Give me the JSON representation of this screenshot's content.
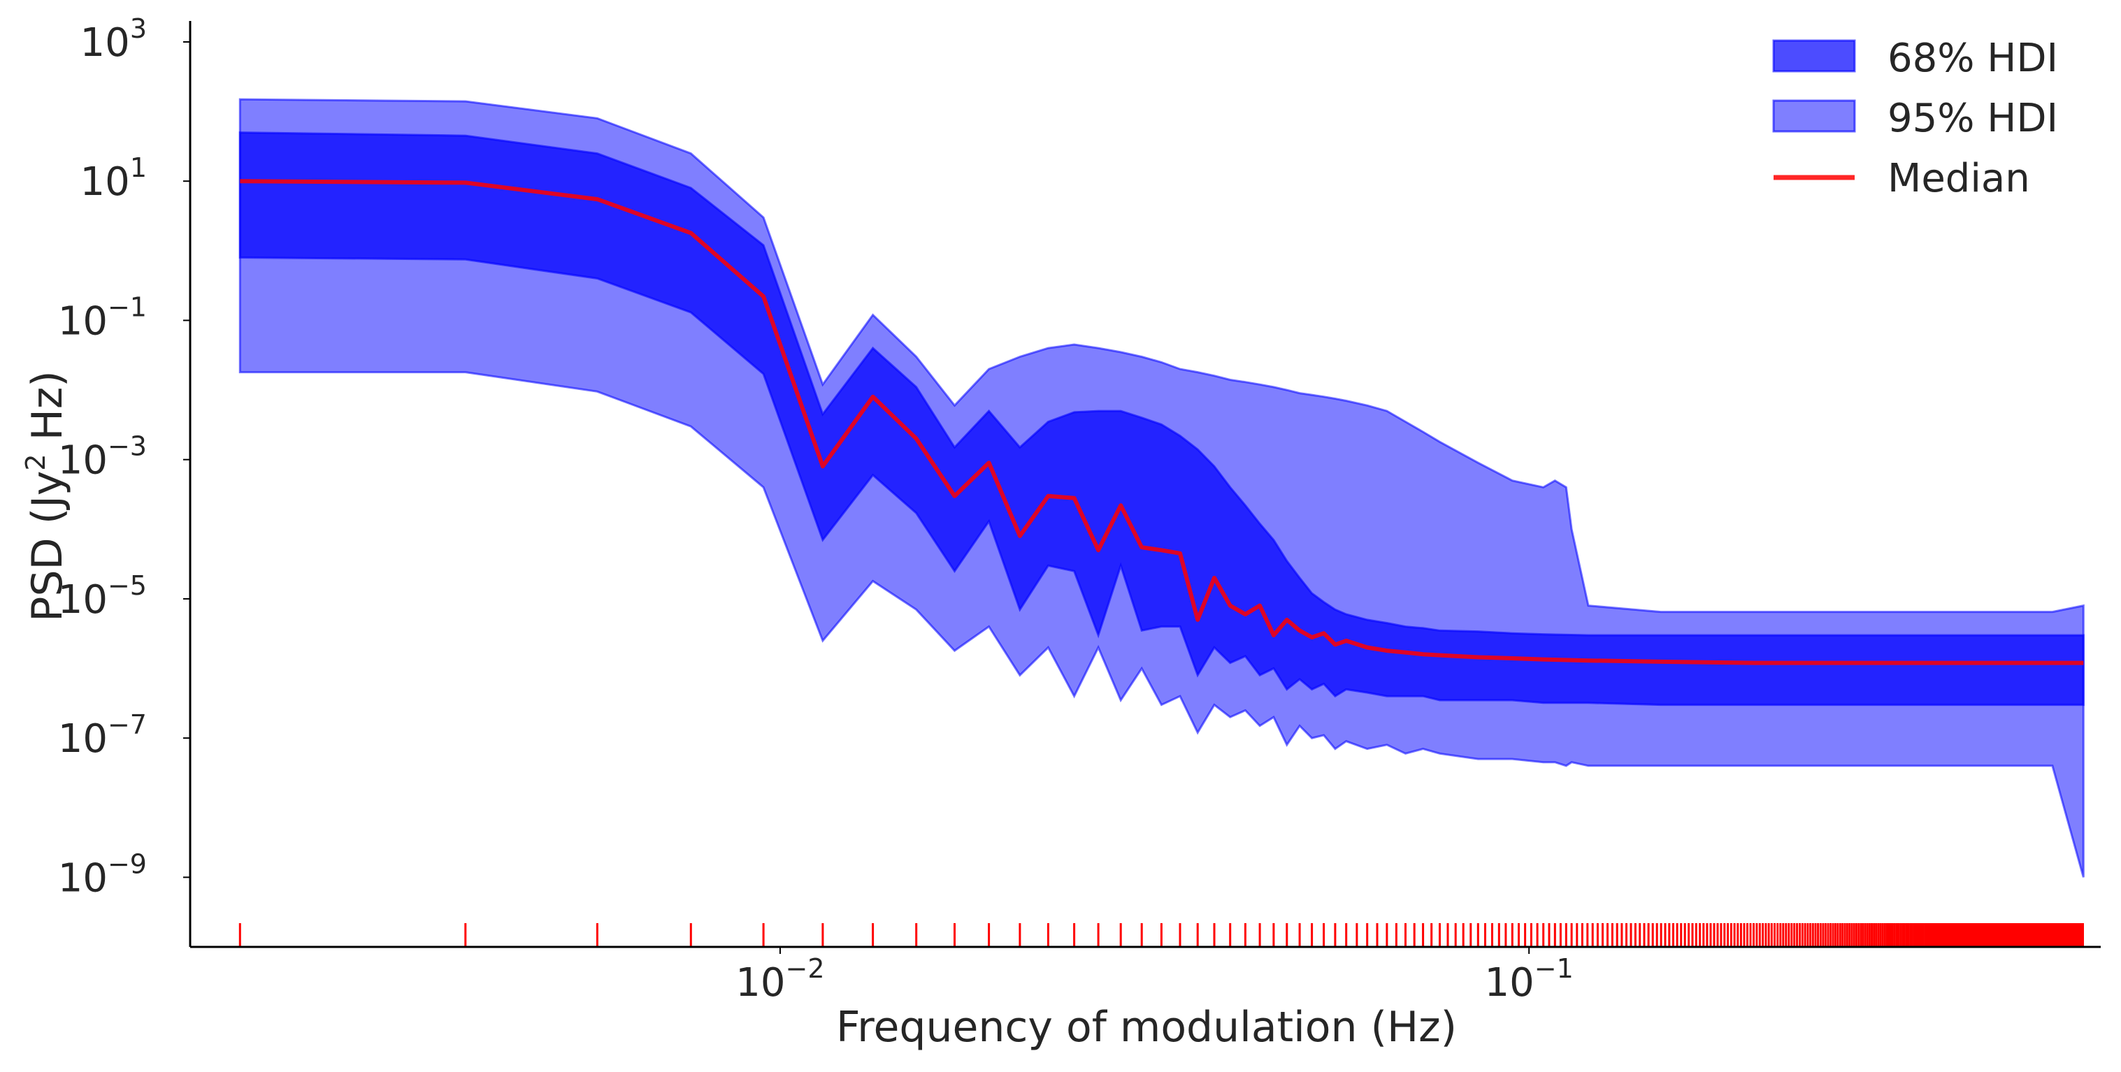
{
  "chart_data": {
    "type": "area",
    "title": "",
    "xlabel": "Frequency of modulation (Hz)",
    "ylabel_main": "PSD (Jy",
    "ylabel_sup": "2",
    "ylabel_tail": " Hz)",
    "xscale": "log",
    "yscale": "log",
    "xlim": [
      0.00163,
      0.58
    ],
    "ylim": [
      1e-10,
      2000.0
    ],
    "xticks": [
      {
        "value": 0.01,
        "base": "10",
        "exp": "−2"
      },
      {
        "value": 0.1,
        "base": "10",
        "exp": "−1"
      }
    ],
    "yticks": [
      {
        "value": 1000.0,
        "base": "10",
        "exp": "3"
      },
      {
        "value": 10.0,
        "base": "10",
        "exp": "1"
      },
      {
        "value": 0.1,
        "base": "10",
        "exp": "−1"
      },
      {
        "value": 0.001,
        "base": "10",
        "exp": "−3"
      },
      {
        "value": 1e-05,
        "base": "10",
        "exp": "−5"
      },
      {
        "value": 1e-07,
        "base": "10",
        "exp": "−7"
      },
      {
        "value": 1e-09,
        "base": "10",
        "exp": "−9"
      }
    ],
    "grid": false,
    "legend_position": "top-right",
    "legend": [
      {
        "label": "68% HDI",
        "kind": "patch",
        "color": "#0000ff",
        "opacity": 0.7
      },
      {
        "label": "95% HDI",
        "kind": "patch",
        "color": "#0000ff",
        "opacity": 0.5
      },
      {
        "label": "Median",
        "kind": "line",
        "color": "#ff0000"
      }
    ],
    "colors": {
      "band": "#0000ff",
      "median": "#ff0000",
      "rug": "#ff0000",
      "axis": "#000000"
    },
    "series": [
      {
        "name": "95% HDI",
        "x": [
          0.0019,
          0.0038,
          0.0057,
          0.0076,
          0.0095,
          0.0114,
          0.0133,
          0.0152,
          0.0171,
          0.019,
          0.0209,
          0.0228,
          0.0247,
          0.0266,
          0.0285,
          0.0304,
          0.0323,
          0.0342,
          0.0361,
          0.038,
          0.0399,
          0.0418,
          0.0437,
          0.0456,
          0.0475,
          0.0494,
          0.0513,
          0.0532,
          0.0551,
          0.057,
          0.0608,
          0.0646,
          0.0684,
          0.0722,
          0.076,
          0.0855,
          0.095,
          0.1045,
          0.1083,
          0.1121,
          0.114,
          0.12,
          0.15,
          0.2,
          0.25,
          0.3,
          0.4,
          0.5,
          0.55
        ],
        "upper": [
          150,
          140,
          80,
          25,
          3,
          0.012,
          0.12,
          0.03,
          0.006,
          0.02,
          0.03,
          0.04,
          0.045,
          0.04,
          0.035,
          0.03,
          0.025,
          0.02,
          0.018,
          0.016,
          0.014,
          0.013,
          0.012,
          0.011,
          0.01,
          0.009,
          0.0085,
          0.008,
          0.0075,
          0.007,
          0.006,
          0.005,
          0.0035,
          0.0025,
          0.0018,
          0.0009,
          0.0005,
          0.0004,
          0.0005,
          0.0004,
          0.0001,
          8e-06,
          6.5e-06,
          6.5e-06,
          6.5e-06,
          6.5e-06,
          6.5e-06,
          6.5e-06,
          8e-06
        ],
        "lower": [
          0.018,
          0.018,
          0.0095,
          0.003,
          0.0004,
          2.5e-06,
          1.8e-05,
          7e-06,
          1.8e-06,
          4e-06,
          8e-07,
          2e-06,
          4e-07,
          2e-06,
          3.5e-07,
          1e-06,
          3e-07,
          4e-07,
          1.2e-07,
          3e-07,
          2e-07,
          2.5e-07,
          1.5e-07,
          2e-07,
          8e-08,
          1.5e-07,
          1e-07,
          1.1e-07,
          7e-08,
          9e-08,
          7e-08,
          8e-08,
          6e-08,
          7e-08,
          6e-08,
          5e-08,
          5e-08,
          4.5e-08,
          4.5e-08,
          4e-08,
          4.5e-08,
          4e-08,
          4e-08,
          4e-08,
          4e-08,
          4e-08,
          4e-08,
          4e-08,
          1e-09
        ]
      },
      {
        "name": "68% HDI",
        "x": [
          0.0019,
          0.0038,
          0.0057,
          0.0076,
          0.0095,
          0.0114,
          0.0133,
          0.0152,
          0.0171,
          0.019,
          0.0209,
          0.0228,
          0.0247,
          0.0266,
          0.0285,
          0.0304,
          0.0323,
          0.0342,
          0.0361,
          0.038,
          0.0399,
          0.0418,
          0.0437,
          0.0456,
          0.0475,
          0.0494,
          0.0513,
          0.0532,
          0.0551,
          0.057,
          0.0608,
          0.0646,
          0.0684,
          0.0722,
          0.076,
          0.0855,
          0.095,
          0.1045,
          0.12,
          0.15,
          0.2,
          0.25,
          0.3,
          0.4,
          0.5,
          0.55
        ],
        "upper": [
          50,
          45,
          25,
          8,
          1.2,
          0.0045,
          0.04,
          0.011,
          0.0015,
          0.005,
          0.0015,
          0.0035,
          0.0048,
          0.005,
          0.005,
          0.004,
          0.0032,
          0.0022,
          0.0014,
          0.0008,
          0.0004,
          0.00022,
          0.00012,
          7e-05,
          3.5e-05,
          2e-05,
          1.2e-05,
          9e-06,
          7e-06,
          6e-06,
          5e-06,
          4.5e-06,
          4e-06,
          3.8e-06,
          3.5e-06,
          3.4e-06,
          3.2e-06,
          3.1e-06,
          3e-06,
          3e-06,
          3e-06,
          3e-06,
          3e-06,
          3e-06,
          3e-06,
          3e-06
        ],
        "lower": [
          0.8,
          0.75,
          0.4,
          0.13,
          0.017,
          7e-05,
          0.0006,
          0.00017,
          2.5e-05,
          0.00013,
          7e-06,
          3e-05,
          2.5e-05,
          3e-06,
          3e-05,
          3.5e-06,
          4e-06,
          4e-06,
          8e-07,
          2e-06,
          1.2e-06,
          1.5e-06,
          8e-07,
          1e-06,
          5e-07,
          7e-07,
          5e-07,
          6e-07,
          4e-07,
          5e-07,
          4.5e-07,
          4e-07,
          4e-07,
          4e-07,
          3.5e-07,
          3.5e-07,
          3.5e-07,
          3.2e-07,
          3.2e-07,
          3e-07,
          3e-07,
          3e-07,
          3e-07,
          3e-07,
          3e-07,
          3e-07
        ]
      },
      {
        "name": "Median",
        "x": [
          0.0019,
          0.0038,
          0.0057,
          0.0076,
          0.0095,
          0.0114,
          0.0133,
          0.0152,
          0.0171,
          0.019,
          0.0209,
          0.0228,
          0.0247,
          0.0266,
          0.0285,
          0.0304,
          0.0323,
          0.0342,
          0.0361,
          0.038,
          0.0399,
          0.0418,
          0.0437,
          0.0456,
          0.0475,
          0.0494,
          0.0513,
          0.0532,
          0.0551,
          0.057,
          0.0608,
          0.0646,
          0.0684,
          0.0722,
          0.076,
          0.0855,
          0.095,
          0.1045,
          0.12,
          0.15,
          0.2,
          0.25,
          0.3,
          0.4,
          0.5,
          0.55
        ],
        "values": [
          10,
          9.5,
          5.5,
          1.8,
          0.22,
          0.0008,
          0.008,
          0.002,
          0.0003,
          0.0009,
          8e-05,
          0.0003,
          0.00028,
          5e-05,
          0.00022,
          5.5e-05,
          5e-05,
          4.5e-05,
          5e-06,
          2e-05,
          8e-06,
          6e-06,
          8e-06,
          3e-06,
          5e-06,
          3.5e-06,
          2.8e-06,
          3.2e-06,
          2.2e-06,
          2.5e-06,
          2e-06,
          1.8e-06,
          1.7e-06,
          1.6e-06,
          1.55e-06,
          1.45e-06,
          1.4e-06,
          1.35e-06,
          1.3e-06,
          1.25e-06,
          1.2e-06,
          1.2e-06,
          1.2e-06,
          1.2e-06,
          1.2e-06,
          1.2e-06
        ]
      }
    ],
    "rug": {
      "description_spacing_hz": 0.0019,
      "x_start": 0.0019,
      "x_end": 0.55
    }
  }
}
